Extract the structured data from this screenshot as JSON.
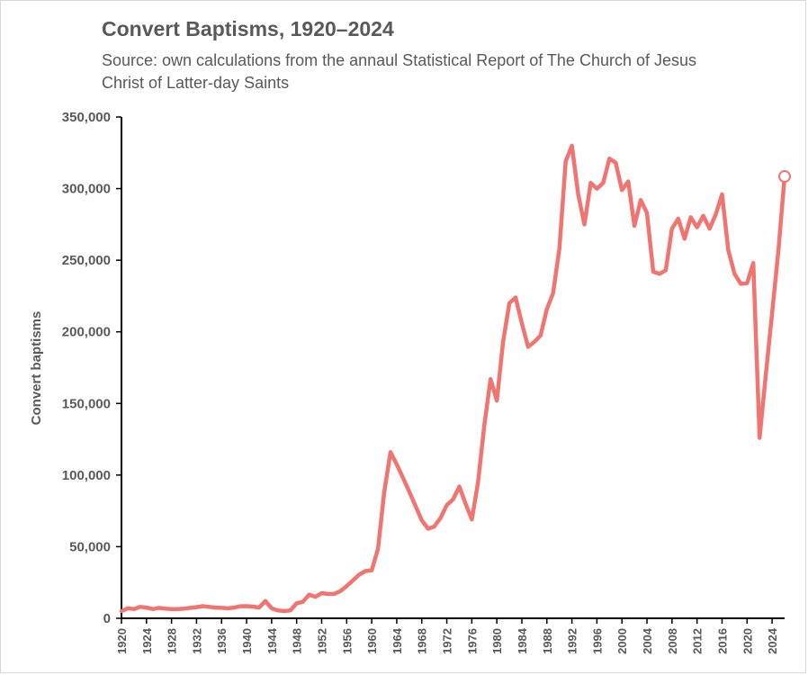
{
  "chart_data": {
    "type": "line",
    "title": "Convert Baptisms, 1920–2024",
    "subtitle": "Source: own calculations from the annaul Statistical Report of The Church of Jesus Christ of Latter-day Saints",
    "xlabel": "",
    "ylabel": "Convert baptisms",
    "ylim": [
      0,
      350000
    ],
    "yticks": [
      0,
      50000,
      100000,
      150000,
      200000,
      250000,
      300000,
      350000
    ],
    "ytick_labels": [
      "0",
      "50,000",
      "100,000",
      "150,000",
      "200,000",
      "250,000",
      "300,000",
      "350,000"
    ],
    "xticks": [
      1920,
      1924,
      1928,
      1932,
      1936,
      1940,
      1944,
      1948,
      1952,
      1956,
      1960,
      1964,
      1968,
      1972,
      1976,
      1980,
      1984,
      1988,
      1992,
      1996,
      2000,
      2004,
      2008,
      2012,
      2016,
      2020,
      2024
    ],
    "xtick_labels": [
      "1920",
      "1924",
      "1928",
      "1932",
      "1936",
      "1940",
      "1944",
      "1948",
      "1952",
      "1956",
      "1960",
      "1964",
      "1968",
      "1972",
      "1976",
      "1980",
      "1984",
      "1988",
      "1992",
      "1996",
      "2000",
      "2004",
      "2008",
      "2012",
      "2016",
      "2020",
      "2024"
    ],
    "grid": false,
    "color": "#f07470",
    "series": [
      {
        "name": "Convert baptisms",
        "points": [
          [
            1920,
            5000
          ],
          [
            1921,
            7000
          ],
          [
            1922,
            6500
          ],
          [
            1923,
            8000
          ],
          [
            1924,
            7500
          ],
          [
            1925,
            6500
          ],
          [
            1926,
            7200
          ],
          [
            1927,
            6800
          ],
          [
            1928,
            6500
          ],
          [
            1929,
            6500
          ],
          [
            1930,
            6700
          ],
          [
            1931,
            7300
          ],
          [
            1932,
            7800
          ],
          [
            1933,
            8500
          ],
          [
            1934,
            8000
          ],
          [
            1935,
            7500
          ],
          [
            1936,
            7300
          ],
          [
            1937,
            7000
          ],
          [
            1938,
            7500
          ],
          [
            1939,
            8400
          ],
          [
            1940,
            8500
          ],
          [
            1941,
            8200
          ],
          [
            1942,
            7500
          ],
          [
            1943,
            12000
          ],
          [
            1944,
            7000
          ],
          [
            1945,
            5500
          ],
          [
            1946,
            5000
          ],
          [
            1947,
            5500
          ],
          [
            1948,
            10500
          ],
          [
            1949,
            11500
          ],
          [
            1950,
            16500
          ],
          [
            1951,
            15000
          ],
          [
            1952,
            17500
          ],
          [
            1953,
            17000
          ],
          [
            1954,
            17000
          ],
          [
            1955,
            19000
          ],
          [
            1956,
            22500
          ],
          [
            1957,
            26500
          ],
          [
            1958,
            30500
          ],
          [
            1959,
            33000
          ],
          [
            1960,
            33500
          ],
          [
            1961,
            48500
          ],
          [
            1962,
            88000
          ],
          [
            1963,
            116000
          ],
          [
            1964,
            107500
          ],
          [
            1965,
            98000
          ],
          [
            1966,
            88500
          ],
          [
            1967,
            78500
          ],
          [
            1968,
            68500
          ],
          [
            1969,
            62500
          ],
          [
            1970,
            64000
          ],
          [
            1971,
            70000
          ],
          [
            1972,
            79000
          ],
          [
            1973,
            83000
          ],
          [
            1974,
            92000
          ],
          [
            1975,
            80000
          ],
          [
            1976,
            69000
          ],
          [
            1977,
            95000
          ],
          [
            1978,
            135000
          ],
          [
            1979,
            167000
          ],
          [
            1980,
            152000
          ],
          [
            1981,
            193000
          ],
          [
            1982,
            220000
          ],
          [
            1983,
            224000
          ],
          [
            1984,
            206000
          ],
          [
            1985,
            189500
          ],
          [
            1986,
            193000
          ],
          [
            1987,
            197500
          ],
          [
            1988,
            216000
          ],
          [
            1989,
            227000
          ],
          [
            1990,
            258000
          ],
          [
            1991,
            319000
          ],
          [
            1992,
            330000
          ],
          [
            1993,
            296000
          ],
          [
            1994,
            275000
          ],
          [
            1995,
            304000
          ],
          [
            1996,
            300000
          ],
          [
            1997,
            304000
          ],
          [
            1998,
            321000
          ],
          [
            1999,
            318000
          ],
          [
            2000,
            299000
          ],
          [
            2001,
            305000
          ],
          [
            2002,
            274000
          ],
          [
            2003,
            292000
          ],
          [
            2004,
            283000
          ],
          [
            2005,
            242000
          ],
          [
            2006,
            240500
          ],
          [
            2007,
            243000
          ],
          [
            2008,
            272000
          ],
          [
            2009,
            279000
          ],
          [
            2010,
            265000
          ],
          [
            2011,
            280000
          ],
          [
            2012,
            273000
          ],
          [
            2013,
            281000
          ],
          [
            2014,
            272000
          ],
          [
            2015,
            282000
          ],
          [
            2016,
            296000
          ],
          [
            2017,
            257000
          ],
          [
            2018,
            240500
          ],
          [
            2019,
            233500
          ],
          [
            2020,
            234000
          ],
          [
            2021,
            248000
          ],
          [
            2022,
            126000
          ],
          [
            2023,
            170000
          ],
          [
            2024,
            213000
          ],
          [
            2025,
            256000
          ],
          [
            2026,
            308500
          ]
        ]
      }
    ],
    "end_marker": "hollow-circle"
  }
}
